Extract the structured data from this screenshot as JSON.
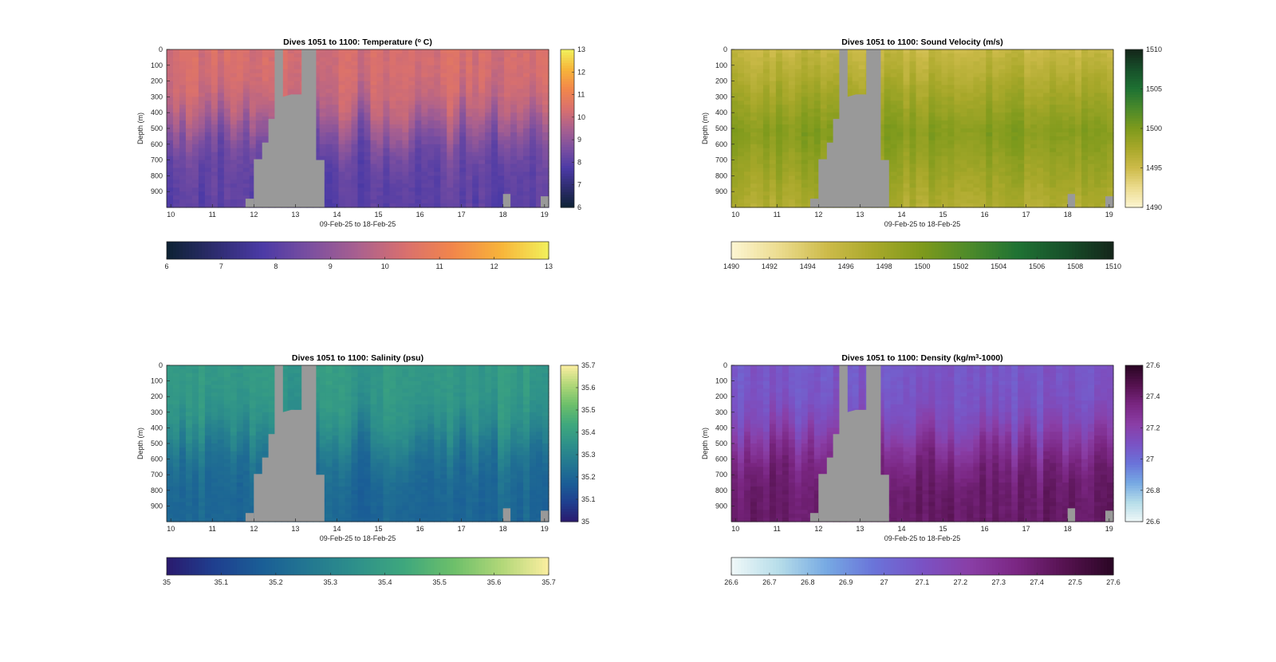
{
  "chart_data": [
    {
      "type": "heatmap",
      "title": "Dives 1051 to 1100: Temperature (",
      "title_sup": "o",
      "title_tail": " C)",
      "xlabel": "09-Feb-25 to 18-Feb-25",
      "ylabel": "Depth (m)",
      "x_ticks": [
        "10",
        "11",
        "12",
        "13",
        "14",
        "15",
        "16",
        "17",
        "18",
        "19"
      ],
      "xlim": [
        9.9,
        19.1
      ],
      "y_ticks": [
        "0",
        "100",
        "200",
        "300",
        "400",
        "500",
        "600",
        "700",
        "800",
        "900"
      ],
      "ylim": [
        0,
        1000
      ],
      "colorbar_ticks": [
        "6",
        "7",
        "8",
        "9",
        "10",
        "11",
        "12",
        "13"
      ],
      "horizontal_colorbar_ticks": [
        "6",
        "7",
        "8",
        "9",
        "10",
        "11",
        "12",
        "13"
      ],
      "range": [
        6,
        13
      ],
      "surface_value": 10.3,
      "deep_value": 8.0,
      "colormap": [
        "#0d2233",
        "#2d2c6e",
        "#4b3aa6",
        "#7b4fa0",
        "#a9608f",
        "#d9706e",
        "#f2864b",
        "#f7b43a",
        "#f2f05b"
      ]
    },
    {
      "type": "heatmap",
      "title": "Dives 1051 to 1100: Sound Velocity (m/s)",
      "title_sup": "",
      "title_tail": "",
      "xlabel": "09-Feb-25 to 18-Feb-25",
      "ylabel": "Depth (m)",
      "x_ticks": [
        "10",
        "11",
        "12",
        "13",
        "14",
        "15",
        "16",
        "17",
        "18",
        "19"
      ],
      "xlim": [
        9.9,
        19.1
      ],
      "y_ticks": [
        "0",
        "100",
        "200",
        "300",
        "400",
        "500",
        "600",
        "700",
        "800",
        "900"
      ],
      "ylim": [
        0,
        1000
      ],
      "colorbar_ticks": [
        "1490",
        "1495",
        "1500",
        "1505",
        "1510"
      ],
      "horizontal_colorbar_ticks": [
        "1490",
        "1492",
        "1494",
        "1496",
        "1498",
        "1500",
        "1502",
        "1504",
        "1506",
        "1508",
        "1510"
      ],
      "range": [
        1490,
        1510
      ],
      "surface_value": 1495.5,
      "mid_value": 1499.5,
      "deep_value": 1497.0,
      "colormap": [
        "#fdf6d3",
        "#ecdc8f",
        "#cdbb4a",
        "#a8a82a",
        "#7e9a1c",
        "#4c8a2a",
        "#1f7233",
        "#17502a",
        "#14261a"
      ]
    },
    {
      "type": "heatmap",
      "title": "Dives 1051 to 1100: Salinity (psu)",
      "title_sup": "",
      "title_tail": "",
      "xlabel": "09-Feb-25 to 18-Feb-25",
      "ylabel": "Depth (m)",
      "x_ticks": [
        "10",
        "11",
        "12",
        "13",
        "14",
        "15",
        "16",
        "17",
        "18",
        "19"
      ],
      "xlim": [
        9.9,
        19.1
      ],
      "y_ticks": [
        "0",
        "100",
        "200",
        "300",
        "400",
        "500",
        "600",
        "700",
        "800",
        "900"
      ],
      "ylim": [
        0,
        1000
      ],
      "colorbar_ticks": [
        "35",
        "35.1",
        "35.2",
        "35.3",
        "35.4",
        "35.5",
        "35.6",
        "35.7"
      ],
      "horizontal_colorbar_ticks": [
        "35",
        "35.1",
        "35.2",
        "35.3",
        "35.4",
        "35.5",
        "35.6",
        "35.7"
      ],
      "range": [
        35,
        35.7
      ],
      "surface_value": 35.38,
      "deep_value": 35.2,
      "colormap": [
        "#2a1a6e",
        "#1f3f8f",
        "#1a5e96",
        "#237891",
        "#2e918a",
        "#3fa87d",
        "#6cbf6a",
        "#b0d778",
        "#fbeea0"
      ]
    },
    {
      "type": "heatmap",
      "title": "Dives 1051 to 1100: Density (kg/m",
      "title_sup": "3",
      "title_tail": "-1000)",
      "xlabel": "09-Feb-25 to 18-Feb-25",
      "ylabel": "Depth (m)",
      "x_ticks": [
        "10",
        "11",
        "12",
        "13",
        "14",
        "15",
        "16",
        "17",
        "18",
        "19"
      ],
      "xlim": [
        9.9,
        19.1
      ],
      "y_ticks": [
        "0",
        "100",
        "200",
        "300",
        "400",
        "500",
        "600",
        "700",
        "800",
        "900"
      ],
      "ylim": [
        0,
        1000
      ],
      "colorbar_ticks": [
        "26.6",
        "26.8",
        "27",
        "27.2",
        "27.4",
        "27.6"
      ],
      "horizontal_colorbar_ticks": [
        "26.6",
        "26.7",
        "26.8",
        "26.9",
        "27",
        "27.1",
        "27.2",
        "27.3",
        "27.4",
        "27.5",
        "27.6"
      ],
      "range": [
        26.6,
        27.6
      ],
      "surface_value": 27.08,
      "deep_value": 27.42,
      "colormap": [
        "#f0f8f8",
        "#b6dde9",
        "#76a9e3",
        "#6a73d9",
        "#7a52c4",
        "#8a3ea6",
        "#7a2682",
        "#55124f",
        "#2a0624"
      ]
    }
  ],
  "colors": {
    "nodata": "#999999",
    "frame": "#262626",
    "background": "#ffffff"
  }
}
